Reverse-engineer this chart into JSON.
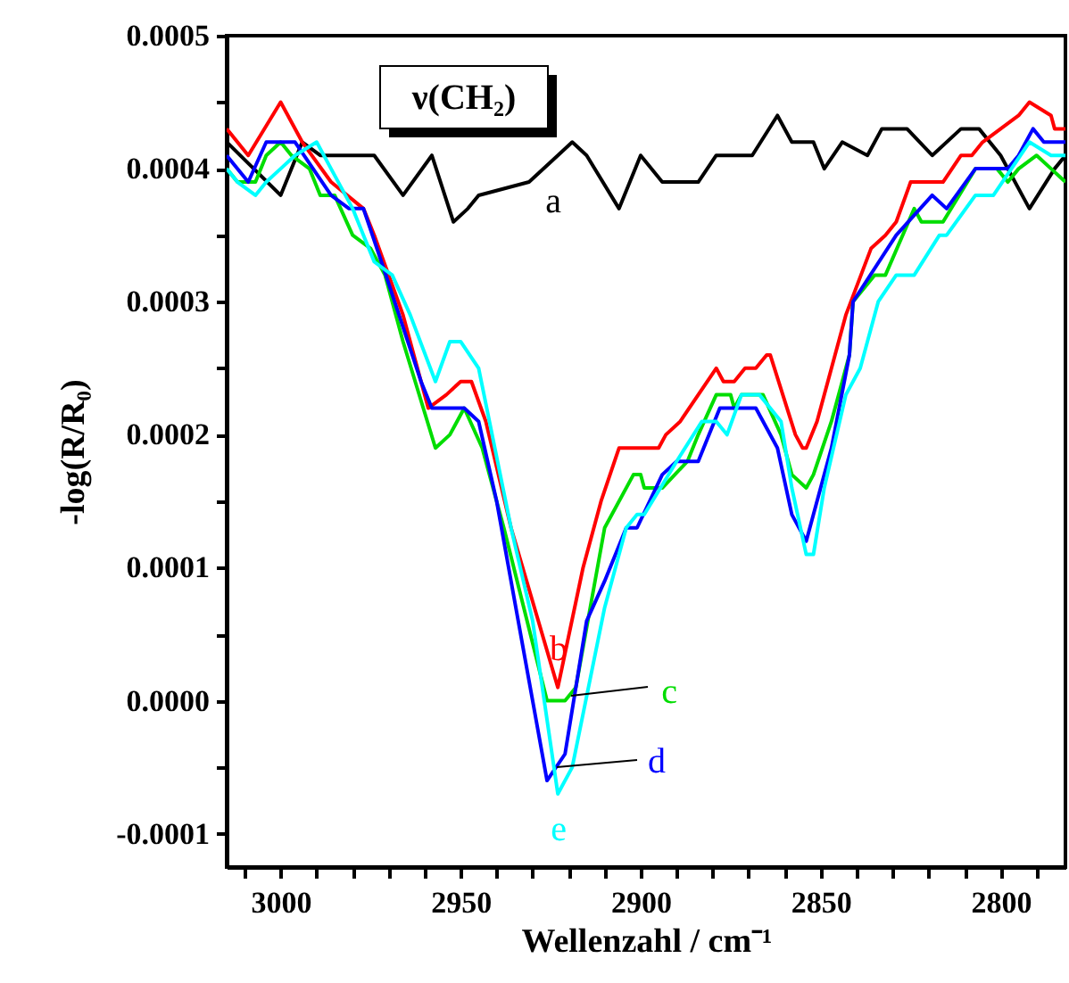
{
  "chart_data": {
    "type": "line",
    "xlabel": "Wellenzahl / cm⁻¹",
    "ylabel": "-log(R/R₀)",
    "xlim": [
      3015,
      2782
    ],
    "ylim": [
      -0.000125,
      0.0005
    ],
    "xticks": [
      {
        "value": 3010,
        "label": null
      },
      3000,
      {
        "value": 2990,
        "label": null
      },
      {
        "value": 2980,
        "label": null
      },
      {
        "value": 2970,
        "label": null
      },
      {
        "value": 2960,
        "label": null
      },
      2950,
      {
        "value": 2940,
        "label": null
      },
      {
        "value": 2930,
        "label": null
      },
      {
        "value": 2920,
        "label": null
      },
      {
        "value": 2910,
        "label": null
      },
      2900,
      {
        "value": 2890,
        "label": null
      },
      {
        "value": 2880,
        "label": null
      },
      {
        "value": 2870,
        "label": null
      },
      {
        "value": 2860,
        "label": null
      },
      2850,
      {
        "value": 2840,
        "label": null
      },
      {
        "value": 2830,
        "label": null
      },
      {
        "value": 2820,
        "label": null
      },
      {
        "value": 2810,
        "label": null
      },
      2800,
      {
        "value": 2790,
        "label": null
      }
    ],
    "yticks": [
      -0.0001,
      {
        "value": -5e-05,
        "label": null
      },
      {
        "value": 0,
        "label": "0.0000"
      },
      {
        "value": 5e-05,
        "label": null
      },
      0.0001,
      {
        "value": 0.00015,
        "label": null
      },
      0.0002,
      {
        "value": 0.00025,
        "label": null
      },
      0.0003,
      {
        "value": 0.00035,
        "label": null
      },
      0.0004,
      {
        "value": 0.00045,
        "label": null
      },
      0.0005
    ],
    "grid": false,
    "marker": "none",
    "line_style": "solid",
    "series": [
      {
        "color": "#000000",
        "x": [
          3015,
          3000,
          2994,
          2989,
          2974,
          2966,
          2958,
          2952,
          2948,
          2945,
          2931,
          2923,
          2919,
          2915,
          2906,
          2900,
          2894,
          2884,
          2879,
          2869,
          2862,
          2858,
          2852,
          2849,
          2844,
          2837,
          2833,
          2826,
          2819,
          2811,
          2806,
          2800,
          2792,
          2785,
          2782
        ],
        "values": [
          0.00042,
          0.00038,
          0.00042,
          0.00041,
          0.00041,
          0.00038,
          0.00041,
          0.00036,
          0.00037,
          0.00038,
          0.00039,
          0.00041,
          0.00042,
          0.00041,
          0.00037,
          0.00041,
          0.00039,
          0.00039,
          0.00041,
          0.00041,
          0.00044,
          0.00042,
          0.00042,
          0.0004,
          0.00042,
          0.00041,
          0.00043,
          0.00043,
          0.00041,
          0.00043,
          0.00043,
          0.00041,
          0.00037,
          0.0004,
          0.00041
        ]
      },
      {
        "color": "#ff0000",
        "x": [
          3015,
          3009,
          3000,
          2994,
          2986,
          2977,
          2974,
          2966,
          2959,
          2954,
          2950,
          2947,
          2943,
          2936,
          2923,
          2916,
          2911,
          2906,
          2895,
          2893,
          2889,
          2879,
          2877,
          2874,
          2871,
          2868,
          2865,
          2864,
          2857,
          2855,
          2854,
          2851,
          2843,
          2836,
          2832,
          2829,
          2825,
          2816,
          2811,
          2808,
          2805,
          2800,
          2795,
          2792,
          2786,
          2785,
          2782
        ],
        "values": [
          0.00043,
          0.00041,
          0.00045,
          0.00042,
          0.00039,
          0.00037,
          0.00035,
          0.00029,
          0.00022,
          0.00023,
          0.00024,
          0.00024,
          0.00021,
          0.00013,
          1e-05,
          0.0001,
          0.00015,
          0.00019,
          0.00019,
          0.0002,
          0.00021,
          0.00025,
          0.00024,
          0.00024,
          0.00025,
          0.00025,
          0.00026,
          0.00026,
          0.0002,
          0.00019,
          0.00019,
          0.00021,
          0.00029,
          0.00034,
          0.00035,
          0.00036,
          0.00039,
          0.00039,
          0.00041,
          0.00041,
          0.00042,
          0.00043,
          0.00044,
          0.00045,
          0.00044,
          0.00043,
          0.00043
        ]
      },
      {
        "color": "#00dd00",
        "x": [
          3015,
          3012,
          3007,
          3004,
          3000,
          2997,
          2992,
          2989,
          2985,
          2980,
          2975,
          2971,
          2966,
          2957,
          2953,
          2949,
          2944,
          2938,
          2926,
          2921,
          2918,
          2910,
          2902,
          2900,
          2899,
          2894,
          2887,
          2884,
          2879,
          2875,
          2874,
          2872,
          2866,
          2861,
          2858,
          2854,
          2852,
          2847,
          2842,
          2841,
          2835,
          2832,
          2824,
          2822,
          2816,
          2807,
          2801,
          2798,
          2795,
          2790,
          2786,
          2782
        ],
        "values": [
          0.0004,
          0.00039,
          0.00039,
          0.00041,
          0.00042,
          0.00041,
          0.0004,
          0.00038,
          0.00038,
          0.00035,
          0.00034,
          0.00032,
          0.00027,
          0.00019,
          0.0002,
          0.00022,
          0.00019,
          0.00013,
          0.0,
          0.0,
          1e-05,
          0.00013,
          0.00017,
          0.00017,
          0.00016,
          0.00016,
          0.00018,
          0.0002,
          0.00023,
          0.00023,
          0.00022,
          0.00023,
          0.00023,
          0.0002,
          0.00017,
          0.00016,
          0.00017,
          0.00021,
          0.00026,
          0.0003,
          0.00032,
          0.00032,
          0.00037,
          0.00036,
          0.00036,
          0.0004,
          0.0004,
          0.00039,
          0.0004,
          0.00041,
          0.0004,
          0.00039
        ]
      },
      {
        "color": "#0000ff",
        "x": [
          3015,
          3009,
          3004,
          2996,
          2986,
          2981,
          2977,
          2972,
          2961,
          2958,
          2949,
          2945,
          2940,
          2926,
          2921,
          2915,
          2910,
          2904,
          2901,
          2894,
          2890,
          2884,
          2878,
          2868,
          2862,
          2858,
          2854,
          2852,
          2847,
          2842,
          2841,
          2829,
          2819,
          2815,
          2807,
          2798,
          2795,
          2791,
          2788,
          2782
        ],
        "values": [
          0.00041,
          0.00039,
          0.00042,
          0.00042,
          0.00038,
          0.00037,
          0.00037,
          0.00033,
          0.00024,
          0.00022,
          0.00022,
          0.00021,
          0.00015,
          -6e-05,
          -4e-05,
          6e-05,
          9e-05,
          0.00013,
          0.00013,
          0.00017,
          0.00018,
          0.00018,
          0.00022,
          0.00022,
          0.00019,
          0.00014,
          0.00012,
          0.00014,
          0.00019,
          0.00026,
          0.0003,
          0.00035,
          0.00038,
          0.00037,
          0.0004,
          0.0004,
          0.00041,
          0.00043,
          0.00042,
          0.00042
        ]
      },
      {
        "color": "#00ffff",
        "x": [
          3015,
          3012,
          3007,
          3004,
          3000,
          2996,
          2990,
          2986,
          2980,
          2974,
          2969,
          2964,
          2957,
          2953,
          2950,
          2945,
          2936,
          2930,
          2923,
          2919,
          2910,
          2904,
          2901,
          2899,
          2890,
          2883,
          2879,
          2876,
          2872,
          2867,
          2861,
          2858,
          2854,
          2852,
          2849,
          2843,
          2839,
          2834,
          2829,
          2824,
          2817,
          2815,
          2807,
          2802,
          2797,
          2792,
          2786,
          2782
        ],
        "values": [
          0.0004,
          0.00039,
          0.00038,
          0.00039,
          0.0004,
          0.00041,
          0.00042,
          0.0004,
          0.00037,
          0.00033,
          0.00032,
          0.00029,
          0.00024,
          0.00027,
          0.00027,
          0.00025,
          0.00013,
          6e-05,
          -7e-05,
          -5e-05,
          7e-05,
          0.00013,
          0.00014,
          0.00014,
          0.00018,
          0.00021,
          0.00021,
          0.0002,
          0.00023,
          0.00023,
          0.00021,
          0.00016,
          0.00011,
          0.00011,
          0.00016,
          0.00023,
          0.00025,
          0.0003,
          0.00032,
          0.00032,
          0.00035,
          0.00035,
          0.00038,
          0.00038,
          0.0004,
          0.00042,
          0.00041,
          0.00041
        ]
      }
    ],
    "annotations": [
      "ν(CH₂)",
      "a",
      "b",
      "c",
      "d",
      "e"
    ]
  }
}
